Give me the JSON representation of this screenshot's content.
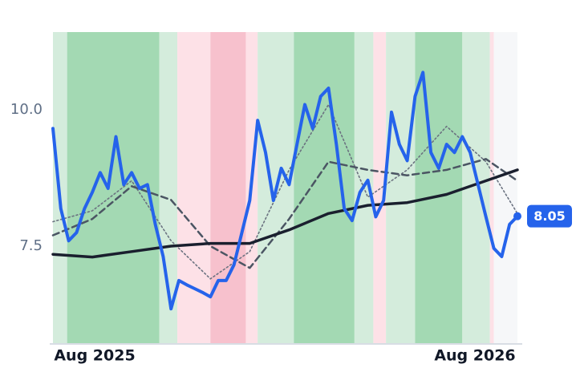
{
  "chart_data": {
    "type": "line",
    "xlim": [
      0,
      59
    ],
    "ylim": [
      5.72,
      11.43
    ],
    "yticks": [
      7.5,
      {
        "value": 10,
        "label": "10.0"
      }
    ],
    "xticks": [
      {
        "value": 5.3,
        "label": "Aug 2025"
      },
      {
        "value": 53.6,
        "label": "Aug 2026"
      }
    ],
    "bands": [
      {
        "start": 0,
        "end": 1.8,
        "color": "#d4ecdc"
      },
      {
        "start": 1.8,
        "end": 13.5,
        "color": "#a3d9b3"
      },
      {
        "start": 13.5,
        "end": 15.8,
        "color": "#d4ecdc"
      },
      {
        "start": 15.8,
        "end": 20,
        "color": "#fde1e7"
      },
      {
        "start": 20,
        "end": 24.5,
        "color": "#f7c1cd"
      },
      {
        "start": 24.5,
        "end": 26,
        "color": "#fde1e7"
      },
      {
        "start": 26,
        "end": 30.6,
        "color": "#d4ecdc"
      },
      {
        "start": 30.6,
        "end": 38.3,
        "color": "#a3d9b3"
      },
      {
        "start": 38.3,
        "end": 40.7,
        "color": "#d4ecdc"
      },
      {
        "start": 40.7,
        "end": 42.3,
        "color": "#fde1e7"
      },
      {
        "start": 42.3,
        "end": 46,
        "color": "#d4ecdc"
      },
      {
        "start": 46,
        "end": 52,
        "color": "#a3d9b3"
      },
      {
        "start": 52,
        "end": 55.5,
        "color": "#d4ecdc"
      },
      {
        "start": 55.5,
        "end": 56,
        "color": "#fde1e7"
      },
      {
        "start": 56,
        "end": 59,
        "color": "#f6f7f9"
      }
    ],
    "series": [
      {
        "color": "#2563eb",
        "width": 4,
        "dash": "none",
        "values": [
          9.66,
          8.19,
          7.6,
          7.75,
          8.19,
          8.49,
          8.85,
          8.56,
          9.51,
          8.63,
          8.85,
          8.56,
          8.63,
          7.9,
          7.31,
          6.35,
          6.87,
          6.79,
          6.72,
          6.65,
          6.57,
          6.87,
          6.87,
          7.16,
          7.75,
          8.34,
          9.81,
          9.22,
          8.34,
          8.93,
          8.63,
          9.37,
          10.1,
          9.66,
          10.25,
          10.4,
          9.37,
          8.19,
          7.97,
          8.49,
          8.71,
          8.04,
          8.34,
          9.96,
          9.37,
          9.07,
          10.25,
          10.69,
          9.22,
          8.93,
          9.37,
          9.22,
          9.51,
          9.22,
          8.63,
          8.04,
          7.46,
          7.31,
          7.9,
          8.05
        ]
      },
      {
        "color": "#1a1f2e",
        "width": 3.5,
        "dash": "none",
        "x": [
          0,
          5,
          10,
          15,
          20,
          25,
          30,
          35,
          40,
          45,
          50,
          55,
          59
        ],
        "values": [
          7.35,
          7.3,
          7.4,
          7.5,
          7.55,
          7.55,
          7.8,
          8.1,
          8.25,
          8.3,
          8.45,
          8.7,
          8.9
        ]
      },
      {
        "color": "#4b5563",
        "width": 2.5,
        "dash": "8 5",
        "x": [
          0,
          5,
          10,
          15,
          20,
          25,
          30,
          35,
          40,
          45,
          50,
          55,
          59
        ],
        "values": [
          7.7,
          8.0,
          8.6,
          8.35,
          7.5,
          7.1,
          8.0,
          9.05,
          8.9,
          8.8,
          8.9,
          9.1,
          8.7
        ]
      },
      {
        "color": "#6b7280",
        "width": 1.6,
        "dash": "2 3",
        "x": [
          0,
          5,
          10,
          15,
          20,
          25,
          30,
          35,
          40,
          45,
          50,
          55,
          59
        ],
        "values": [
          7.95,
          8.15,
          8.7,
          7.6,
          6.9,
          7.4,
          8.9,
          10.1,
          8.4,
          8.9,
          9.7,
          9.05,
          8.1
        ]
      }
    ]
  }
}
